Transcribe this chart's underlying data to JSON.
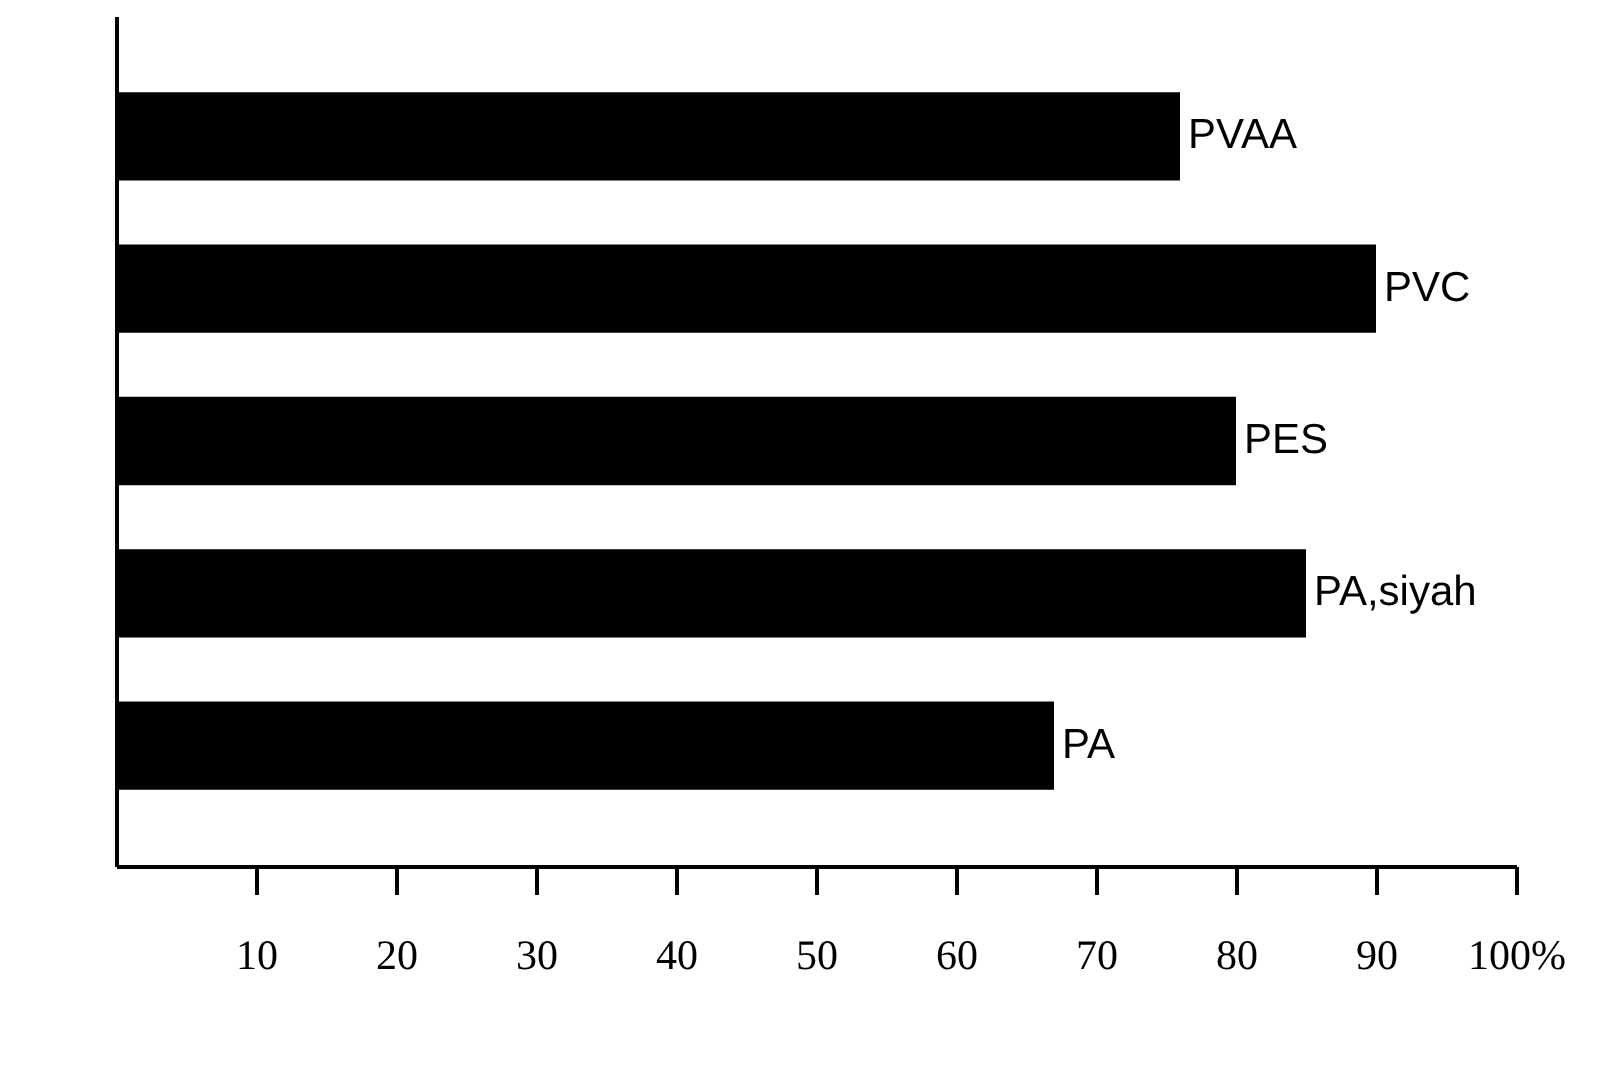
{
  "chart_data": {
    "type": "bar",
    "orientation": "horizontal",
    "categories": [
      "PVAA",
      "PVC",
      "PES",
      "PA,siyah",
      "PA"
    ],
    "values": [
      76,
      90,
      80,
      85,
      67
    ],
    "color": "#000000",
    "xlim": [
      0,
      100
    ],
    "xticks": [
      10,
      20,
      30,
      40,
      50,
      60,
      70,
      80,
      {
        "value": 90,
        "label": "90"
      },
      {
        "value": 100,
        "label": "100%"
      }
    ],
    "grid": false
  }
}
